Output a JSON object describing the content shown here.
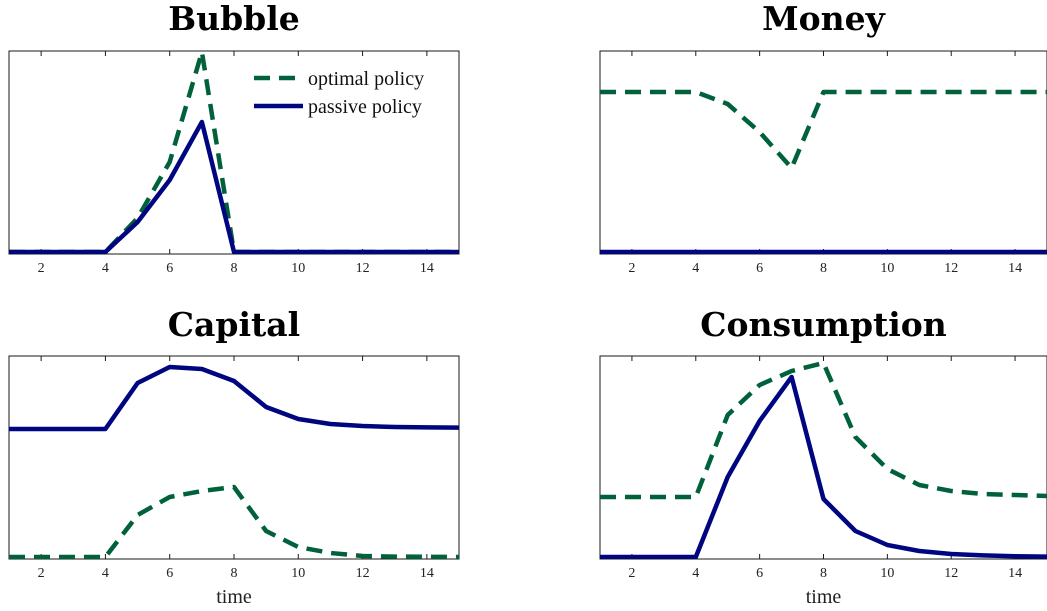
{
  "colors": {
    "optimal": "#00613a",
    "passive": "#000580"
  },
  "legend": {
    "placement": "top-right",
    "optimal": "optimal policy",
    "passive": "passive policy"
  },
  "chart_data": [
    {
      "type": "line",
      "title": "Bubble",
      "xlabel": "",
      "ylabel": "",
      "xlim": [
        1,
        15
      ],
      "ylim": [
        0,
        1
      ],
      "xticks": [
        2,
        4,
        6,
        8,
        10,
        12,
        14
      ],
      "legend": true,
      "series": [
        {
          "name": "optimal policy",
          "style": "dashed",
          "x": [
            1,
            2,
            3,
            4,
            5,
            6,
            7,
            8,
            9,
            10,
            11,
            12,
            13,
            14,
            15
          ],
          "y": [
            0,
            0,
            0,
            0,
            0.17,
            0.45,
            1.0,
            0,
            0,
            0,
            0,
            0,
            0,
            0,
            0
          ]
        },
        {
          "name": "passive policy",
          "style": "solid",
          "x": [
            1,
            2,
            3,
            4,
            5,
            6,
            7,
            8,
            9,
            10,
            11,
            12,
            13,
            14,
            15
          ],
          "y": [
            0,
            0,
            0,
            0,
            0.15,
            0.36,
            0.65,
            0,
            0,
            0,
            0,
            0,
            0,
            0,
            0
          ]
        }
      ]
    },
    {
      "type": "line",
      "title": "Money",
      "xlabel": "",
      "ylabel": "",
      "xlim": [
        1,
        15
      ],
      "ylim": [
        0,
        1
      ],
      "xticks": [
        2,
        4,
        6,
        8,
        10,
        12,
        14
      ],
      "legend": false,
      "series": [
        {
          "name": "optimal policy",
          "style": "dashed",
          "x": [
            1,
            2,
            3,
            4,
            5,
            6,
            7,
            8,
            9,
            10,
            11,
            12,
            13,
            14,
            15
          ],
          "y": [
            0.8,
            0.8,
            0.8,
            0.8,
            0.74,
            0.6,
            0.42,
            0.8,
            0.8,
            0.8,
            0.8,
            0.8,
            0.8,
            0.8,
            0.8
          ]
        },
        {
          "name": "passive policy",
          "style": "solid",
          "x": [
            1,
            2,
            3,
            4,
            5,
            6,
            7,
            8,
            9,
            10,
            11,
            12,
            13,
            14,
            15
          ],
          "y": [
            0,
            0,
            0,
            0,
            0,
            0,
            0,
            0,
            0,
            0,
            0,
            0,
            0,
            0,
            0
          ]
        }
      ]
    },
    {
      "type": "line",
      "title": "Capital",
      "xlabel": "time",
      "ylabel": "",
      "xlim": [
        1,
        15
      ],
      "ylim": [
        0,
        1
      ],
      "xticks": [
        2,
        4,
        6,
        8,
        10,
        12,
        14
      ],
      "legend": false,
      "series": [
        {
          "name": "optimal policy",
          "style": "dashed",
          "x": [
            1,
            2,
            3,
            4,
            5,
            6,
            7,
            8,
            9,
            10,
            11,
            12,
            13,
            14,
            15
          ],
          "y": [
            0,
            0,
            0,
            0,
            0.21,
            0.3,
            0.33,
            0.35,
            0.13,
            0.05,
            0.02,
            0.005,
            0.002,
            0.001,
            0
          ]
        },
        {
          "name": "passive policy",
          "style": "solid",
          "x": [
            1,
            2,
            3,
            4,
            5,
            6,
            7,
            8,
            9,
            10,
            11,
            12,
            13,
            14,
            15
          ],
          "y": [
            0.64,
            0.64,
            0.64,
            0.64,
            0.87,
            0.95,
            0.94,
            0.88,
            0.75,
            0.69,
            0.665,
            0.655,
            0.65,
            0.648,
            0.647
          ]
        }
      ]
    },
    {
      "type": "line",
      "title": "Consumption",
      "xlabel": "time",
      "ylabel": "",
      "xlim": [
        1,
        15
      ],
      "ylim": [
        0,
        1
      ],
      "xticks": [
        2,
        4,
        6,
        8,
        10,
        12,
        14
      ],
      "legend": false,
      "series": [
        {
          "name": "optimal policy",
          "style": "dashed",
          "x": [
            1,
            2,
            3,
            4,
            5,
            6,
            7,
            8,
            9,
            10,
            11,
            12,
            13,
            14,
            15
          ],
          "y": [
            0.3,
            0.3,
            0.3,
            0.3,
            0.71,
            0.86,
            0.93,
            0.97,
            0.6,
            0.44,
            0.36,
            0.33,
            0.315,
            0.31,
            0.305
          ]
        },
        {
          "name": "passive policy",
          "style": "solid",
          "x": [
            1,
            2,
            3,
            4,
            5,
            6,
            7,
            8,
            9,
            10,
            11,
            12,
            13,
            14,
            15
          ],
          "y": [
            0,
            0,
            0,
            0,
            0.4,
            0.68,
            0.9,
            0.29,
            0.13,
            0.06,
            0.03,
            0.015,
            0.008,
            0.004,
            0.002
          ]
        }
      ]
    }
  ]
}
